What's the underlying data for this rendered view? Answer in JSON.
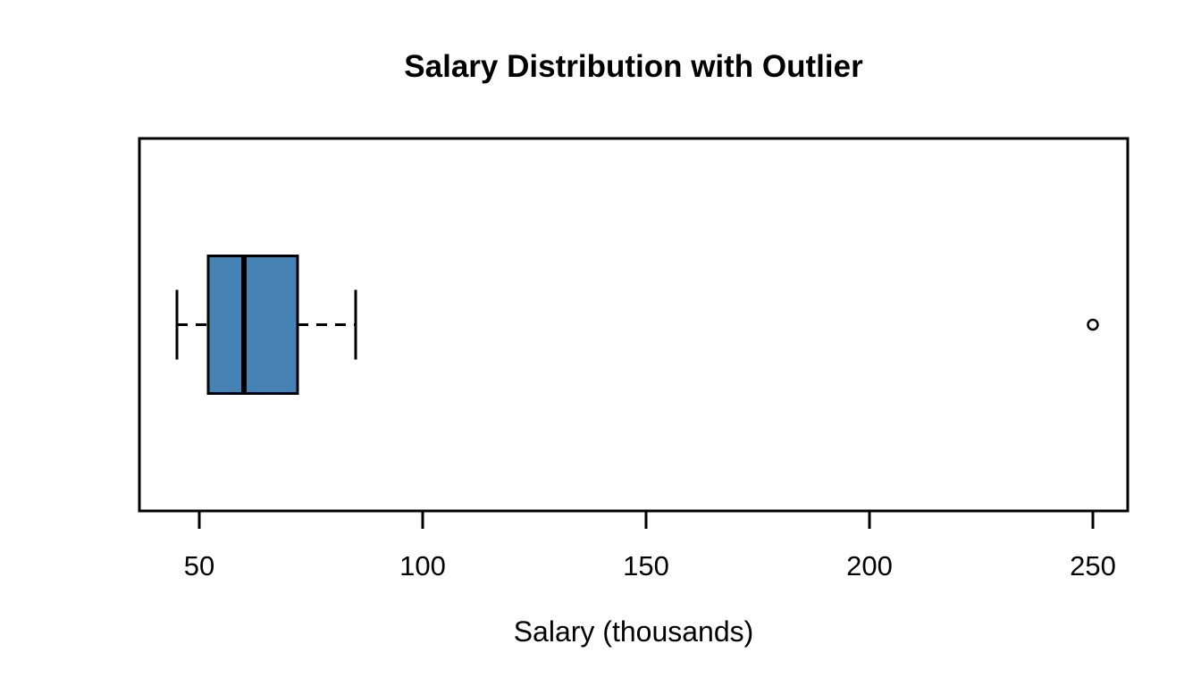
{
  "chart_data": {
    "type": "boxplot",
    "orientation": "horizontal",
    "title": "Salary Distribution with Outlier",
    "xlabel": "Salary (thousands)",
    "ylabel": "",
    "xlim": [
      36.6,
      257.8
    ],
    "xticks": [
      50,
      100,
      150,
      200,
      250
    ],
    "grid": false,
    "legend": null,
    "whisker_line_style": "dashed",
    "series": [
      {
        "name": "salary",
        "whisker_low": 45,
        "q1": 52,
        "median": 60,
        "q3": 72,
        "whisker_high": 85,
        "outliers": [
          250
        ]
      }
    ],
    "colors": {
      "box_fill": "#4682B4",
      "line": "#000000",
      "background": "#FFFFFF"
    }
  }
}
